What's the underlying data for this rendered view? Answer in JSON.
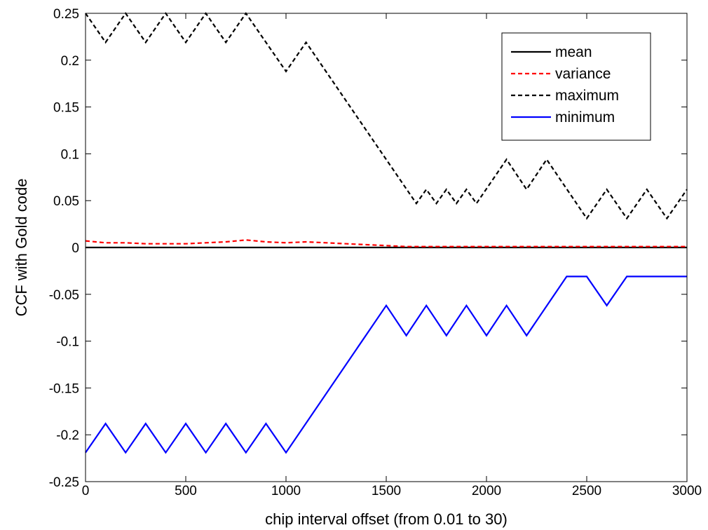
{
  "chart_data": {
    "type": "line",
    "xlabel": "chip interval offset (from 0.01 to 30)",
    "ylabel": "CCF with Gold code",
    "xlim": [
      0,
      3000
    ],
    "ylim": [
      -0.25,
      0.25
    ],
    "xticks": [
      0,
      500,
      1000,
      1500,
      2000,
      2500,
      3000
    ],
    "yticks": [
      0.25,
      0.2,
      0.15,
      0.1,
      0.05,
      0,
      -0.05,
      -0.1,
      -0.15,
      -0.2,
      -0.25
    ],
    "xtick_labels": [
      "0",
      "500",
      "1000",
      "1500",
      "2000",
      "2500",
      "3000"
    ],
    "ytick_labels": [
      "0.25",
      "0.2",
      "0.15",
      "0.1",
      "0.05",
      "0",
      "-0.05",
      "-0.1",
      "-0.15",
      "-0.2",
      "-0.25"
    ],
    "legend_position": "top-right",
    "series": [
      {
        "name": "mean",
        "color": "#000000",
        "style": "solid",
        "x": [
          0,
          3000
        ],
        "y": [
          0,
          0
        ]
      },
      {
        "name": "variance",
        "color": "#ff0000",
        "style": "dashed",
        "x": [
          0,
          100,
          200,
          300,
          400,
          500,
          600,
          700,
          800,
          900,
          1000,
          1100,
          1200,
          1300,
          1400,
          1500,
          1600,
          1700,
          1800,
          1900,
          2000,
          2100,
          2200,
          2300,
          2400,
          2500,
          2600,
          2700,
          2800,
          2900,
          3000
        ],
        "y": [
          0.007,
          0.005,
          0.005,
          0.004,
          0.004,
          0.004,
          0.005,
          0.006,
          0.008,
          0.006,
          0.005,
          0.006,
          0.005,
          0.004,
          0.003,
          0.002,
          0.001,
          0.001,
          0.001,
          0.001,
          0.001,
          0.001,
          0.001,
          0.001,
          0.001,
          0.001,
          0.001,
          0.001,
          0.001,
          0.001,
          0.001
        ]
      },
      {
        "name": "maximum",
        "color": "#000000",
        "style": "dashed",
        "x": [
          0,
          100,
          200,
          300,
          400,
          500,
          600,
          700,
          800,
          1000,
          1100,
          1650,
          1700,
          1750,
          1800,
          1850,
          1900,
          1950,
          2100,
          2200,
          2300,
          2500,
          2600,
          2700,
          2800,
          2900,
          3000
        ],
        "y": [
          0.25,
          0.219,
          0.25,
          0.219,
          0.25,
          0.219,
          0.25,
          0.219,
          0.25,
          0.188,
          0.219,
          0.047,
          0.062,
          0.047,
          0.062,
          0.047,
          0.062,
          0.047,
          0.094,
          0.062,
          0.094,
          0.031,
          0.062,
          0.031,
          0.062,
          0.031,
          0.062
        ]
      },
      {
        "name": "minimum",
        "color": "#0000ff",
        "style": "solid",
        "x": [
          0,
          100,
          200,
          300,
          400,
          500,
          600,
          700,
          800,
          900,
          1000,
          1500,
          1600,
          1700,
          1800,
          1900,
          2000,
          2100,
          2200,
          2400,
          2500,
          2600,
          2700,
          3000
        ],
        "y": [
          -0.219,
          -0.188,
          -0.219,
          -0.188,
          -0.219,
          -0.188,
          -0.219,
          -0.188,
          -0.219,
          -0.188,
          -0.219,
          -0.062,
          -0.094,
          -0.062,
          -0.094,
          -0.062,
          -0.094,
          -0.062,
          -0.094,
          -0.031,
          -0.031,
          -0.062,
          -0.031,
          -0.031
        ]
      }
    ]
  }
}
